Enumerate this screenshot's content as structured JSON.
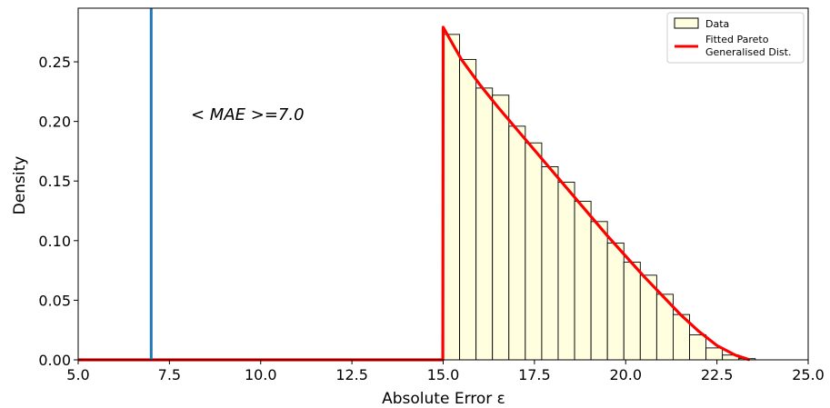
{
  "chart_data": {
    "type": "bar",
    "xlabel": "Absolute Error ε",
    "ylabel": "Density",
    "xlim": [
      5.0,
      25.0
    ],
    "ylim": [
      0.0,
      0.295
    ],
    "xticks": [
      "5.0",
      "7.5",
      "10.0",
      "12.5",
      "15.0",
      "17.5",
      "20.0",
      "22.5",
      "25.0"
    ],
    "yticks": [
      "0.00",
      "0.05",
      "0.10",
      "0.15",
      "0.20",
      "0.25"
    ],
    "annotation": "< MAE >=7.0",
    "vline": {
      "x": 7.0,
      "color": "#1f77b4"
    },
    "histogram": {
      "name": "Data",
      "color": "#ffffe0",
      "edges": [
        15.0,
        15.45,
        15.9,
        16.35,
        16.8,
        17.25,
        17.7,
        18.15,
        18.6,
        19.05,
        19.5,
        19.95,
        20.4,
        20.85,
        21.3,
        21.75,
        22.2,
        22.65,
        23.1,
        23.55,
        24.0
      ],
      "values": [
        0.273,
        0.252,
        0.228,
        0.222,
        0.196,
        0.182,
        0.162,
        0.149,
        0.133,
        0.116,
        0.098,
        0.082,
        0.071,
        0.055,
        0.038,
        0.021,
        0.01,
        0.004,
        0.001,
        0.0
      ]
    },
    "fit": {
      "name": "Fitted Pareto Generalised Dist.",
      "color": "#ff0000",
      "x": [
        5.0,
        14.99,
        15.0,
        15.5,
        16.0,
        16.5,
        17.0,
        17.5,
        18.0,
        18.5,
        19.0,
        19.5,
        20.0,
        20.5,
        21.0,
        21.5,
        22.0,
        22.5,
        23.0,
        23.3,
        23.4
      ],
      "y": [
        0.0,
        0.0,
        0.279,
        0.252,
        0.231,
        0.212,
        0.194,
        0.176,
        0.158,
        0.14,
        0.122,
        0.104,
        0.087,
        0.07,
        0.054,
        0.038,
        0.024,
        0.012,
        0.004,
        0.001,
        0.0
      ]
    },
    "legend": {
      "position": "top-right",
      "entries": [
        "Data",
        "Fitted Pareto",
        "Generalised Dist."
      ]
    }
  }
}
